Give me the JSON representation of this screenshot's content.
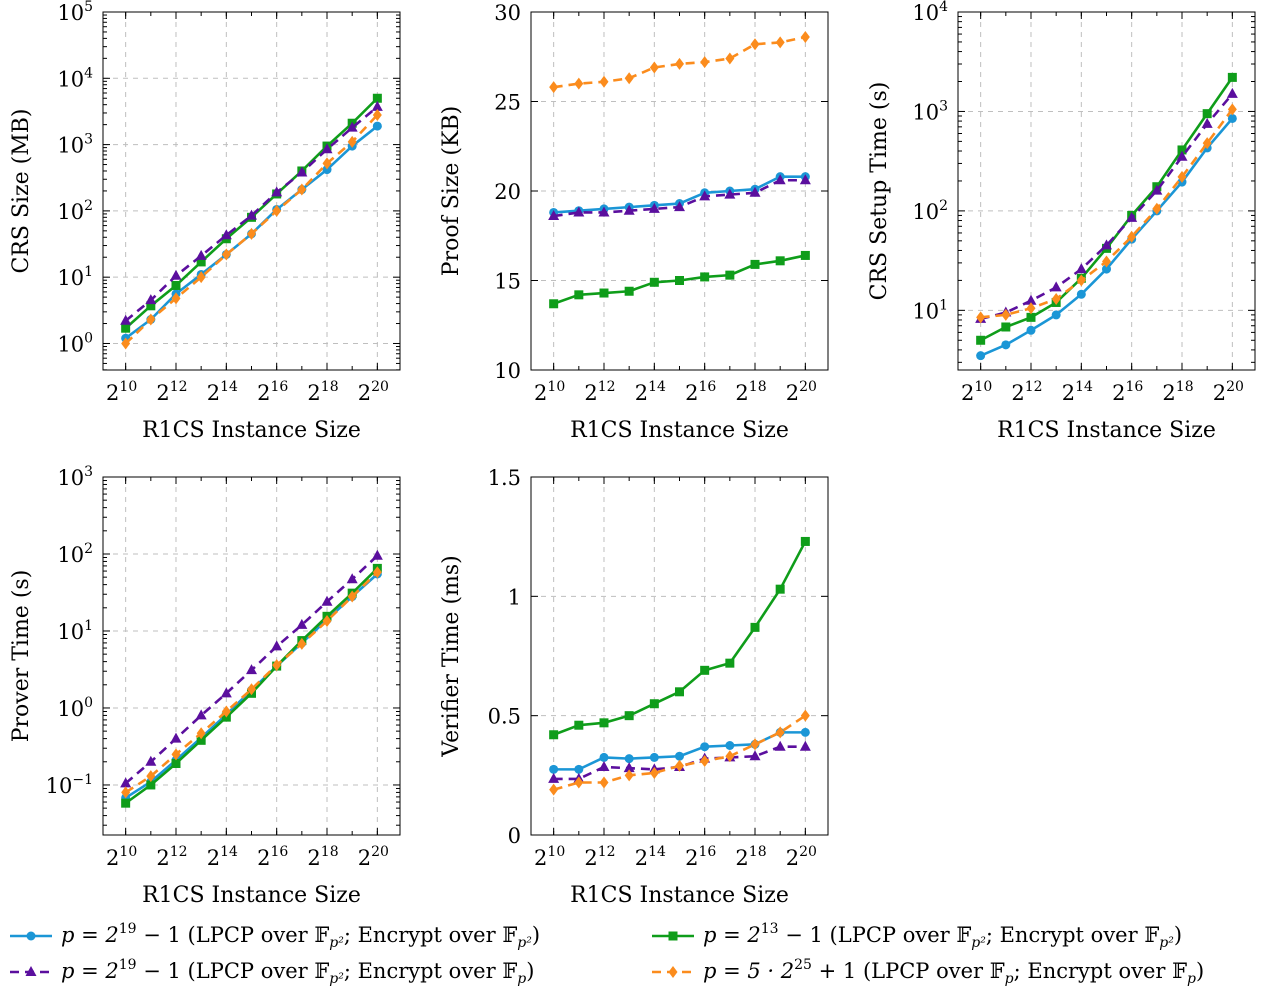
{
  "colors": {
    "blue": "#1b96d6",
    "green": "#0f9d1a",
    "purple": "#5b0f9e",
    "orange": "#fb8c1d",
    "grid": "#bfbfbf"
  },
  "legend": [
    {
      "key": "s1",
      "pre": "p = 2",
      "sup": "19",
      "post": " − 1 (LPCP over 𝔽",
      "sub": "p²",
      "post2": "; Encrypt over 𝔽",
      "sub2": "p²",
      "end": ")"
    },
    {
      "key": "s2",
      "pre": "p = 2",
      "sup": "13",
      "post": " − 1 (LPCP over 𝔽",
      "sub": "p²",
      "post2": "; Encrypt over 𝔽",
      "sub2": "p²",
      "end": ")"
    },
    {
      "key": "s3",
      "pre": "p = 2",
      "sup": "19",
      "post": " − 1 (LPCP over 𝔽",
      "sub": "p²",
      "post2": "; Encrypt over 𝔽",
      "sub2": "p",
      "end": ")"
    },
    {
      "key": "s4",
      "pre": "p = 5 · 2",
      "sup": "25",
      "post": " + 1 (LPCP over 𝔽",
      "sub": "p",
      "post2": "; Encrypt over 𝔽",
      "sub2": "p",
      "end": ")"
    }
  ],
  "chart_data": [
    {
      "type": "line",
      "xlabel": "R1CS Instance Size",
      "ylabel": "CRS Size (MB)",
      "xscale": "log2",
      "x_exponents": [
        10,
        11,
        12,
        13,
        14,
        15,
        16,
        17,
        18,
        19,
        20
      ],
      "x_tick_exponents": [
        10,
        12,
        14,
        16,
        18,
        20
      ],
      "yscale": "log10",
      "ylim_exp": [
        -0.4,
        5
      ],
      "y_ticks": [
        {
          "base": "10",
          "exp": "0"
        },
        {
          "base": "10",
          "exp": "1"
        },
        {
          "base": "10",
          "exp": "2"
        },
        {
          "base": "10",
          "exp": "3"
        },
        {
          "base": "10",
          "exp": "4"
        },
        {
          "base": "10",
          "exp": "5"
        }
      ],
      "y_tick_values": [
        1,
        10,
        100,
        1000,
        10000,
        100000
      ],
      "grid": true,
      "series": [
        {
          "key": "s1",
          "values": [
            1.2,
            2.3,
            5.6,
            11,
            22,
            45,
            105,
            210,
            420,
            950,
            1900
          ]
        },
        {
          "key": "s2",
          "values": [
            1.7,
            3.7,
            7.5,
            17,
            38,
            80,
            180,
            400,
            950,
            2100,
            5000
          ]
        },
        {
          "key": "s3",
          "values": [
            2.2,
            4.5,
            10.5,
            21,
            43,
            85,
            190,
            380,
            850,
            1800,
            3700
          ]
        },
        {
          "key": "s4",
          "values": [
            1.0,
            2.3,
            4.8,
            10,
            22,
            45,
            100,
            210,
            520,
            1100,
            2800
          ]
        }
      ]
    },
    {
      "type": "line",
      "xlabel": "R1CS Instance Size",
      "ylabel": "Proof Size (KB)",
      "xscale": "log2",
      "x_exponents": [
        10,
        11,
        12,
        13,
        14,
        15,
        16,
        17,
        18,
        19,
        20
      ],
      "x_tick_exponents": [
        10,
        12,
        14,
        16,
        18,
        20
      ],
      "yscale": "linear",
      "ylim": [
        10,
        30
      ],
      "y_tick_values": [
        10,
        15,
        20,
        25,
        30
      ],
      "y_ticks": [
        {
          "base": "10"
        },
        {
          "base": "15"
        },
        {
          "base": "20"
        },
        {
          "base": "25"
        },
        {
          "base": "30"
        }
      ],
      "grid": true,
      "series": [
        {
          "key": "s1",
          "values": [
            18.8,
            18.9,
            19.0,
            19.1,
            19.2,
            19.3,
            19.9,
            20.0,
            20.1,
            20.8,
            20.8
          ]
        },
        {
          "key": "s2",
          "values": [
            13.7,
            14.2,
            14.3,
            14.4,
            14.9,
            15.0,
            15.2,
            15.3,
            15.9,
            16.1,
            16.4
          ]
        },
        {
          "key": "s3",
          "values": [
            18.6,
            18.8,
            18.8,
            18.9,
            19.0,
            19.1,
            19.7,
            19.8,
            19.9,
            20.6,
            20.6
          ]
        },
        {
          "key": "s4",
          "values": [
            25.8,
            26.0,
            26.1,
            26.3,
            26.9,
            27.1,
            27.2,
            27.4,
            28.2,
            28.3,
            28.6
          ]
        }
      ]
    },
    {
      "type": "line",
      "xlabel": "R1CS Instance Size",
      "ylabel": "CRS Setup Time (s)",
      "xscale": "log2",
      "x_exponents": [
        10,
        11,
        12,
        13,
        14,
        15,
        16,
        17,
        18,
        19,
        20
      ],
      "x_tick_exponents": [
        10,
        12,
        14,
        16,
        18,
        20
      ],
      "yscale": "log10",
      "ylim_exp": [
        0.4,
        4
      ],
      "y_ticks": [
        {
          "base": "10",
          "exp": "1"
        },
        {
          "base": "10",
          "exp": "2"
        },
        {
          "base": "10",
          "exp": "3"
        },
        {
          "base": "10",
          "exp": "4"
        }
      ],
      "y_tick_values": [
        10,
        100,
        1000,
        10000
      ],
      "grid": true,
      "series": [
        {
          "key": "s1",
          "values": [
            3.5,
            4.5,
            6.3,
            9,
            14.5,
            26,
            52,
            100,
            195,
            430,
            850
          ]
        },
        {
          "key": "s2",
          "values": [
            5.0,
            6.8,
            8.5,
            12,
            21,
            42,
            90,
            175,
            410,
            950,
            2200
          ]
        },
        {
          "key": "s3",
          "values": [
            8.2,
            9.5,
            12.5,
            17,
            26,
            45,
            85,
            160,
            350,
            750,
            1500
          ]
        },
        {
          "key": "s4",
          "values": [
            8.5,
            9.0,
            10.5,
            13,
            20,
            31,
            55,
            105,
            220,
            480,
            1050
          ]
        }
      ]
    },
    {
      "type": "line",
      "xlabel": "R1CS Instance Size",
      "ylabel": "Prover Time (s)",
      "xscale": "log2",
      "x_exponents": [
        10,
        11,
        12,
        13,
        14,
        15,
        16,
        17,
        18,
        19,
        20
      ],
      "x_tick_exponents": [
        10,
        12,
        14,
        16,
        18,
        20
      ],
      "yscale": "log10",
      "ylim_exp": [
        -1.65,
        3
      ],
      "y_ticks": [
        {
          "base": "10",
          "exp": "−1"
        },
        {
          "base": "10",
          "exp": "0"
        },
        {
          "base": "10",
          "exp": "1"
        },
        {
          "base": "10",
          "exp": "2"
        },
        {
          "base": "10",
          "exp": "3"
        }
      ],
      "y_tick_values": [
        0.1,
        1,
        10,
        100,
        1000
      ],
      "grid": true,
      "series": [
        {
          "key": "s1",
          "values": [
            0.068,
            0.11,
            0.21,
            0.41,
            0.82,
            1.7,
            3.5,
            7.0,
            14,
            28,
            55
          ]
        },
        {
          "key": "s2",
          "values": [
            0.058,
            0.1,
            0.19,
            0.38,
            0.76,
            1.55,
            3.5,
            7.5,
            15.5,
            31,
            65
          ]
        },
        {
          "key": "s3",
          "values": [
            0.105,
            0.2,
            0.4,
            0.8,
            1.55,
            3.1,
            6.3,
            12,
            24,
            47,
            95
          ]
        },
        {
          "key": "s4",
          "values": [
            0.08,
            0.13,
            0.25,
            0.47,
            0.9,
            1.75,
            3.6,
            6.8,
            13.5,
            28,
            58
          ]
        }
      ]
    },
    {
      "type": "line",
      "xlabel": "R1CS Instance Size",
      "ylabel": "Verifier Time (ms)",
      "xscale": "log2",
      "x_exponents": [
        10,
        11,
        12,
        13,
        14,
        15,
        16,
        17,
        18,
        19,
        20
      ],
      "x_tick_exponents": [
        10,
        12,
        14,
        16,
        18,
        20
      ],
      "yscale": "linear",
      "ylim": [
        0,
        1.5
      ],
      "y_tick_values": [
        0,
        0.5,
        1,
        1.5
      ],
      "y_ticks": [
        {
          "base": "0"
        },
        {
          "base": "0.5"
        },
        {
          "base": "1"
        },
        {
          "base": "1.5"
        }
      ],
      "grid": true,
      "series": [
        {
          "key": "s1",
          "values": [
            0.275,
            0.275,
            0.325,
            0.32,
            0.325,
            0.33,
            0.37,
            0.375,
            0.38,
            0.43,
            0.43
          ]
        },
        {
          "key": "s2",
          "values": [
            0.42,
            0.46,
            0.47,
            0.5,
            0.55,
            0.6,
            0.69,
            0.72,
            0.87,
            1.03,
            1.23
          ]
        },
        {
          "key": "s3",
          "values": [
            0.235,
            0.235,
            0.285,
            0.28,
            0.275,
            0.285,
            0.32,
            0.325,
            0.33,
            0.37,
            0.37
          ]
        },
        {
          "key": "s4",
          "values": [
            0.19,
            0.22,
            0.22,
            0.25,
            0.26,
            0.29,
            0.31,
            0.33,
            0.38,
            0.43,
            0.5
          ]
        }
      ]
    }
  ]
}
